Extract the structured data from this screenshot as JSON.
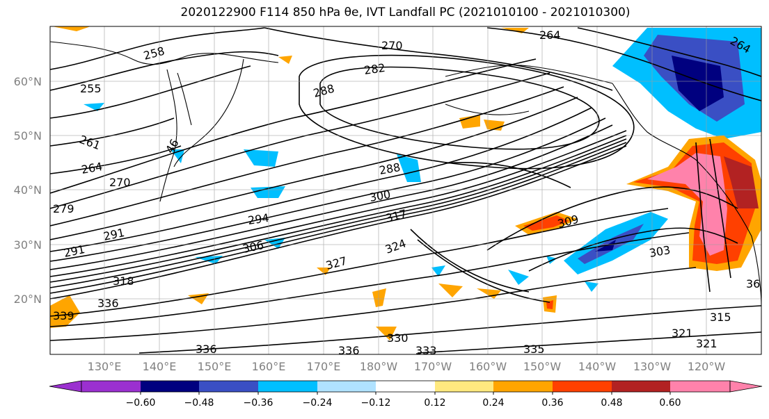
{
  "title": "2020122900 F114 850 hPa θe, IVT Landfall PC (2021010100 - 2021010300)",
  "map": {
    "lat_labels": [
      "60°N",
      "50°N",
      "40°N",
      "30°N",
      "20°N"
    ],
    "lon_labels": [
      "130°E",
      "140°E",
      "150°E",
      "160°E",
      "170°E",
      "180°W",
      "170°W",
      "160°W",
      "150°W",
      "140°W",
      "130°W",
      "120°W"
    ],
    "contour_labels": [
      "258",
      "264",
      "270",
      "282",
      "288",
      "255",
      "261",
      "264",
      "270",
      "279",
      "291",
      "291",
      "294",
      "300",
      "288",
      "317",
      "309",
      "303",
      "306",
      "324",
      "327",
      "318",
      "336",
      "339",
      "336",
      "330",
      "333",
      "335",
      "336",
      "321",
      "315",
      "321",
      "36",
      "46",
      "264"
    ]
  },
  "colorbar": {
    "ticks": [
      "−0.60",
      "−0.48",
      "−0.36",
      "−0.24",
      "−0.12",
      "0.12",
      "0.24",
      "0.36",
      "0.48",
      "0.60"
    ],
    "colors": [
      "#9b30d0",
      "#00007f",
      "#3a4fc4",
      "#00bfff",
      "#b0e2ff",
      "#ffffff",
      "#ffe97f",
      "#ffa500",
      "#ff4000",
      "#b22222",
      "#ff82ab",
      "#ff82ab"
    ]
  },
  "colors": {
    "positive_orange": "#ffa500",
    "positive_red": "#ff4000",
    "positive_pink": "#ff82ab",
    "negative_blue": "#00bfff",
    "negative_navy": "#00007f",
    "negative_royal": "#3a4fc4"
  }
}
